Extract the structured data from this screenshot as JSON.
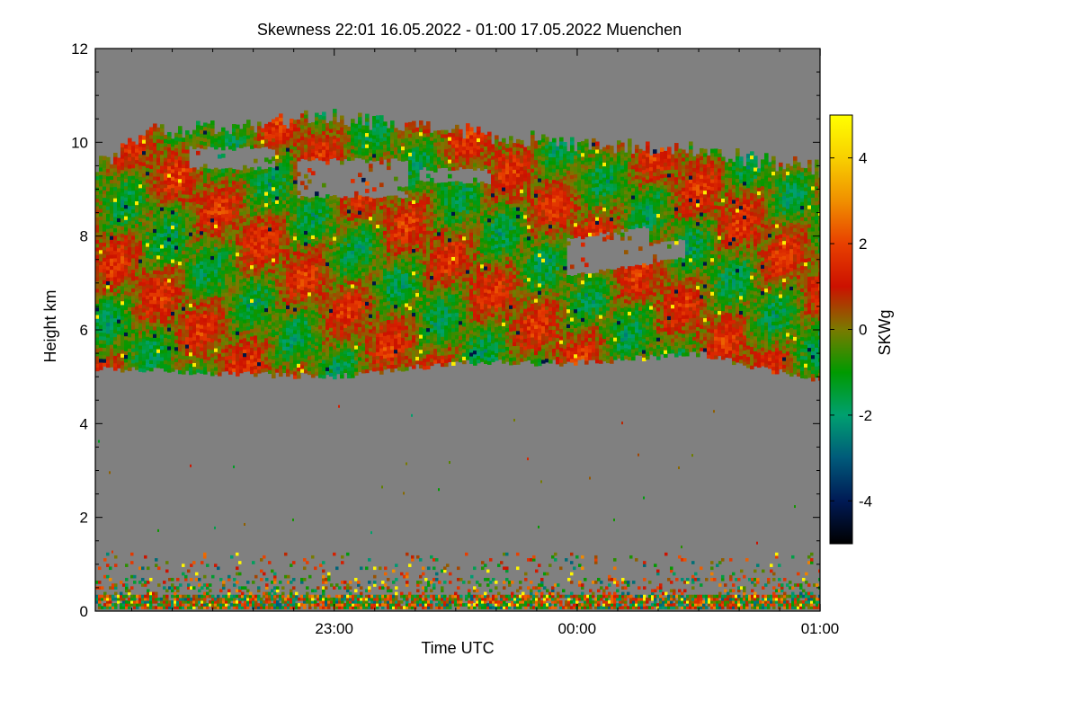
{
  "chart_data": {
    "type": "heatmap",
    "title": "Skewness   22:01 16.05.2022 - 01:00 17.05.2022 Muenchen",
    "xlabel": "Time UTC",
    "ylabel": "Height km",
    "x_range_hours": [
      22.0167,
      25.0
    ],
    "x_ticks": [
      {
        "value": 23.0,
        "label": "23:00"
      },
      {
        "value": 24.0,
        "label": "00:00"
      },
      {
        "value": 25.0,
        "label": "01:00"
      }
    ],
    "x_minor_step_hours": 0.1667,
    "ylim": [
      0,
      12
    ],
    "y_ticks": [
      0,
      2,
      4,
      6,
      8,
      10,
      12
    ],
    "y_minor_step": 0.5,
    "colorbar": {
      "label": "SKWg",
      "range": [
        -5,
        5
      ],
      "ticks": [
        4,
        2,
        0,
        -2,
        -4
      ],
      "stops": [
        {
          "value": -5,
          "color": "#000000"
        },
        {
          "value": -4,
          "color": "#001a55"
        },
        {
          "value": -3,
          "color": "#005a7a"
        },
        {
          "value": -2,
          "color": "#00a070"
        },
        {
          "value": -1,
          "color": "#009a00"
        },
        {
          "value": 0,
          "color": "#7a7a00"
        },
        {
          "value": 1,
          "color": "#cc1100"
        },
        {
          "value": 2,
          "color": "#e84000"
        },
        {
          "value": 3,
          "color": "#f09000"
        },
        {
          "value": 4,
          "color": "#f8d000"
        },
        {
          "value": 5,
          "color": "#ffff00"
        }
      ]
    },
    "no_data_color": "#808080",
    "cloud_layer": {
      "base_km_profile": [
        [
          22.02,
          5.2
        ],
        [
          22.4,
          5.1
        ],
        [
          23.0,
          5.0
        ],
        [
          23.5,
          5.3
        ],
        [
          24.0,
          5.3
        ],
        [
          24.5,
          5.5
        ],
        [
          25.0,
          4.9
        ]
      ],
      "top_km_profile": [
        [
          22.02,
          9.5
        ],
        [
          22.25,
          10.2
        ],
        [
          22.6,
          10.3
        ],
        [
          23.0,
          10.5
        ],
        [
          23.5,
          10.2
        ],
        [
          24.0,
          9.9
        ],
        [
          24.5,
          9.8
        ],
        [
          25.0,
          9.4
        ]
      ]
    },
    "boundary_layer_top_km": 1.2
  }
}
